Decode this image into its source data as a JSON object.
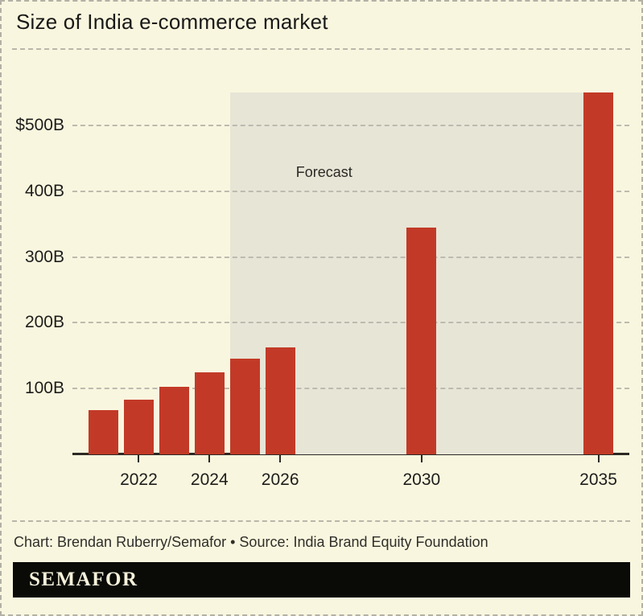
{
  "header": {
    "title": "Size of India e-commerce market"
  },
  "chart_data": {
    "type": "bar",
    "title": "Size of India e-commerce market",
    "unit": "USD billions",
    "categories": [
      "2021",
      "2022",
      "2023",
      "2024",
      "2025",
      "2026",
      "2030",
      "2035"
    ],
    "values": [
      67,
      83,
      103,
      125,
      145,
      163,
      345,
      550
    ],
    "y_ticks": [
      {
        "label": "$500B",
        "value": 500
      },
      {
        "label": "400B",
        "value": 400
      },
      {
        "label": "300B",
        "value": 300
      },
      {
        "label": "200B",
        "value": 200
      },
      {
        "label": "100B",
        "value": 100
      }
    ],
    "x_tick_labels": [
      "2022",
      "2024",
      "2026",
      "2030",
      "2035"
    ],
    "ylim": [
      0,
      550
    ],
    "xlim_years": [
      2021,
      2035
    ],
    "grid": "horizontal-dashed",
    "legend": "none",
    "forecast": {
      "label": "Forecast",
      "start_year": 2025,
      "end_year": 2035
    },
    "colors": {
      "bar": "#c23a27",
      "forecast_region": "#e7e5d6",
      "background": "#f9f6df"
    }
  },
  "footer": {
    "credit": "Chart: Brendan Ruberry/Semafor • Source: India Brand Equity Foundation",
    "logo_text": "SEMAFOR"
  }
}
